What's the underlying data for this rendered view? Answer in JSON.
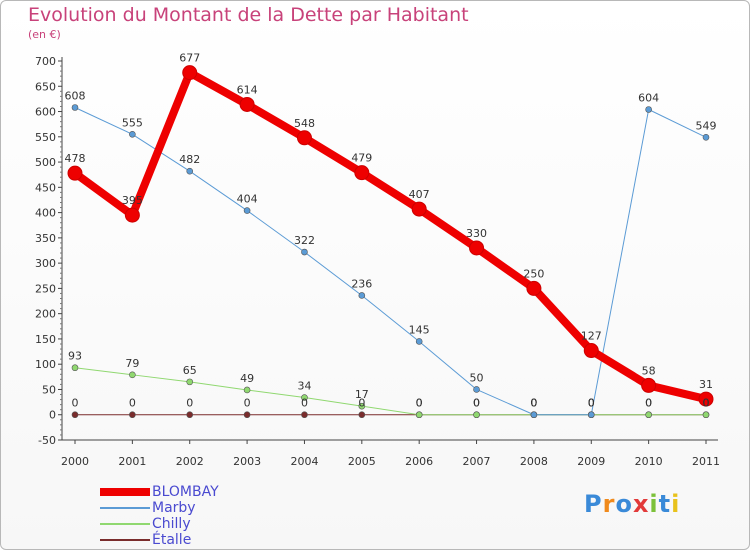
{
  "title": "Evolution du Montant de la Dette par Habitant",
  "subtitle": "(en €)",
  "logo": {
    "letters": [
      "P",
      "r",
      "o",
      "x",
      "i",
      "t",
      "i"
    ],
    "colors": [
      "#3a8ad8",
      "#f08a1c",
      "#3a8ad8",
      "#e23a3a",
      "#7cc13a",
      "#3a8ad8",
      "#e8c21c"
    ]
  },
  "chart_data": {
    "type": "line",
    "title": "Evolution du Montant de la Dette par Habitant",
    "ylabel": "(en €)",
    "categories": [
      "2000",
      "2001",
      "2002",
      "2003",
      "2004",
      "2005",
      "2006",
      "2007",
      "2008",
      "2009",
      "2010",
      "2011"
    ],
    "ylim": [
      -50,
      700
    ],
    "yticks": [
      -50,
      0,
      50,
      100,
      150,
      200,
      250,
      300,
      350,
      400,
      450,
      500,
      550,
      600,
      650,
      700
    ],
    "grid": false,
    "legend_position": "bottom-left",
    "series": [
      {
        "name": "BLOMBAY",
        "color": "#ee0000",
        "width": 8,
        "values": [
          478,
          395,
          677,
          614,
          548,
          479,
          407,
          330,
          250,
          127,
          58,
          31
        ],
        "labels": [
          "478",
          "395",
          "677",
          "614",
          "548",
          "479",
          "407",
          "330",
          "250",
          "127",
          "58",
          "31"
        ]
      },
      {
        "name": "Marby",
        "color": "#5b9bd5",
        "width": 1,
        "values": [
          608,
          555,
          482,
          404,
          322,
          236,
          145,
          50,
          0,
          0,
          604,
          549
        ],
        "labels": [
          "608",
          "555",
          "482",
          "404",
          "322",
          "236",
          "145",
          "50",
          "0",
          "0",
          "604",
          "549"
        ]
      },
      {
        "name": "Chilly",
        "color": "#90d870",
        "width": 1,
        "values": [
          93,
          79,
          65,
          49,
          34,
          17,
          0,
          0,
          0,
          0,
          0,
          0
        ],
        "labels": [
          "93",
          "79",
          "65",
          "49",
          "34",
          "17",
          "0",
          "0",
          "0",
          "0",
          "0",
          "0"
        ]
      },
      {
        "name": "Étalle",
        "color": "#7a2c2c",
        "width": 1,
        "values": [
          0,
          0,
          0,
          0,
          0,
          0,
          0,
          0,
          0,
          0,
          0,
          0
        ],
        "labels": [
          "0",
          "0",
          "0",
          "0",
          "0",
          "0",
          "0",
          "0",
          "0",
          "0",
          "0",
          "0"
        ]
      }
    ]
  }
}
